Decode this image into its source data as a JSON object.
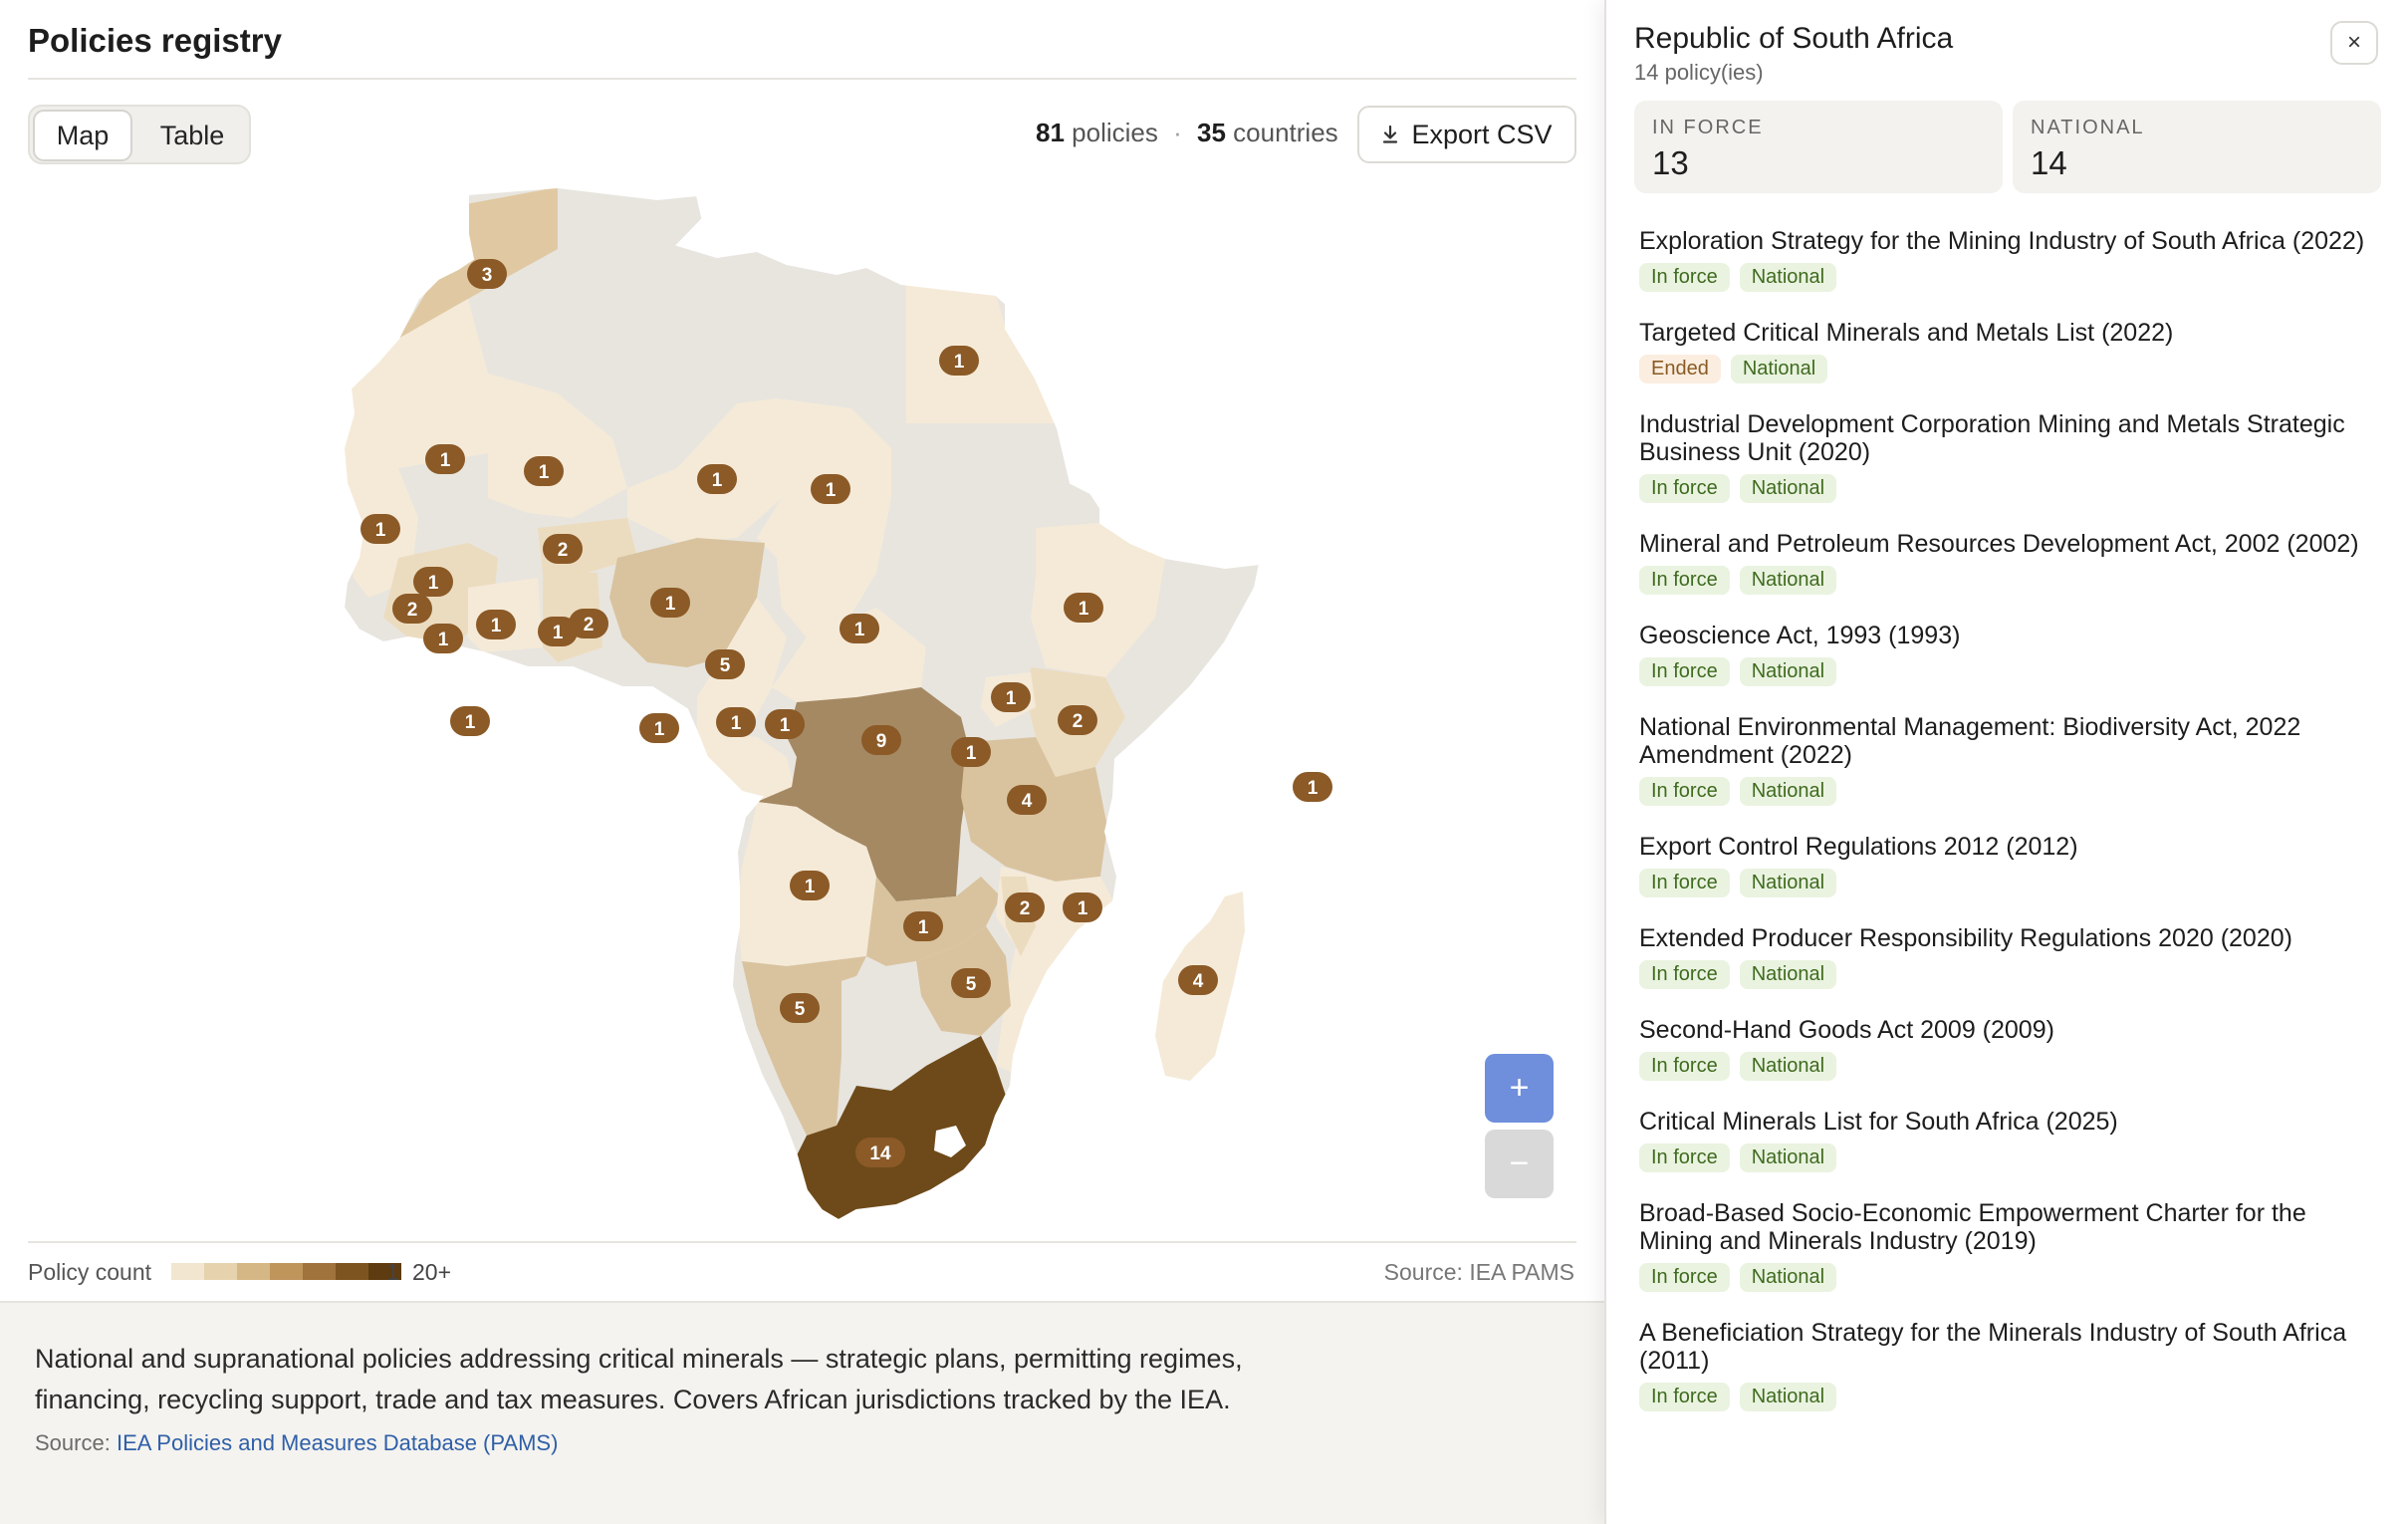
{
  "header": {
    "title": "Policies registry"
  },
  "view_toggle": {
    "map_label": "Map",
    "table_label": "Table",
    "active": "Map"
  },
  "stats": {
    "policies_count": "81",
    "policies_label": "policies",
    "separator": "·",
    "countries_count": "35",
    "countries_label": "countries"
  },
  "export": {
    "label": "Export CSV"
  },
  "zoom": {
    "in_label": "+",
    "out_label": "−"
  },
  "legend": {
    "label": "Policy count",
    "min": "1",
    "max": "20+",
    "colors": [
      "#f2e6d0",
      "#e6d3ae",
      "#d5b785",
      "#bf955c",
      "#a0733c",
      "#7d5420",
      "#5e3b10"
    ],
    "source": "Source: IEA PAMS"
  },
  "map": {
    "colors": {
      "none": "#e8e5df",
      "c1": "#f5ead8",
      "c2": "#ecdcbf",
      "c3": "#e0c9a2",
      "c4": "#d9c39f",
      "c5": "#cfb690",
      "c9": "#a58963",
      "c14": "#6e4a1a",
      "marker": "#8b5a27"
    },
    "markers": [
      "3",
      "1",
      "1",
      "1",
      "1",
      "1",
      "1",
      "2",
      "1",
      "2",
      "1",
      "1",
      "1",
      "2",
      "1",
      "5",
      "1",
      "1",
      "1",
      "1",
      "1",
      "1",
      "1",
      "2",
      "9",
      "1",
      "4",
      "1",
      "1",
      "2",
      "1",
      "5",
      "5",
      "4",
      "1",
      "14"
    ]
  },
  "footer": {
    "description": "National and supranational policies addressing critical minerals — strategic plans, permitting regimes, financing, recycling support, trade and tax measures. Covers African jurisdictions tracked by the IEA.",
    "source_prefix": "Source:",
    "source_link": "IEA Policies and Measures Database (PAMS)"
  },
  "panel": {
    "country": "Republic of South Africa",
    "subtitle": "14 policy(ies)",
    "close_label": "×",
    "cards": {
      "in_force_label": "IN FORCE",
      "in_force_value": "13",
      "national_label": "NATIONAL",
      "national_value": "14"
    },
    "policies": [
      {
        "title": "Exploration Strategy for the Mining Industry of South Africa (2022)",
        "status": "In force",
        "scope": "National"
      },
      {
        "title": "Targeted Critical Minerals and Metals List (2022)",
        "status": "Ended",
        "scope": "National"
      },
      {
        "title": "Industrial Development Corporation Mining and Metals Strategic Business Unit (2020)",
        "status": "In force",
        "scope": "National"
      },
      {
        "title": "Mineral and Petroleum Resources Development Act, 2002 (2002)",
        "status": "In force",
        "scope": "National"
      },
      {
        "title": "Geoscience Act, 1993 (1993)",
        "status": "In force",
        "scope": "National"
      },
      {
        "title": "National Environmental Management: Biodiversity Act, 2022 Amendment (2022)",
        "status": "In force",
        "scope": "National"
      },
      {
        "title": "Export Control Regulations 2012 (2012)",
        "status": "In force",
        "scope": "National"
      },
      {
        "title": "Extended Producer Responsibility Regulations 2020 (2020)",
        "status": "In force",
        "scope": "National"
      },
      {
        "title": "Second-Hand Goods Act 2009 (2009)",
        "status": "In force",
        "scope": "National"
      },
      {
        "title": "Critical Minerals List for South Africa (2025)",
        "status": "In force",
        "scope": "National"
      },
      {
        "title": "Broad-Based Socio-Economic Empowerment Charter for the Mining and Minerals Industry (2019)",
        "status": "In force",
        "scope": "National"
      },
      {
        "title": "A Beneficiation Strategy for the Minerals Industry of South Africa (2011)",
        "status": "In force",
        "scope": "National"
      }
    ]
  }
}
